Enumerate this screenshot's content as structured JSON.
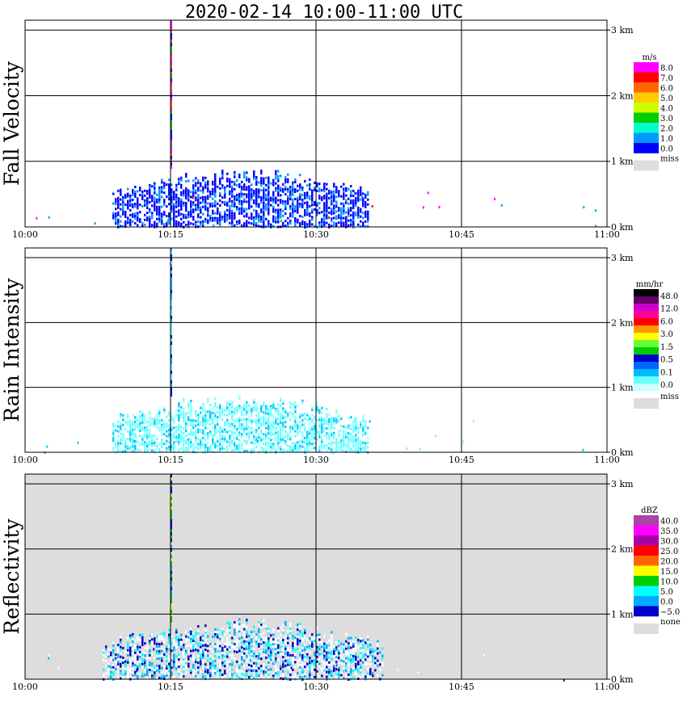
{
  "title": "2020-02-14   10:00-11:00 UTC",
  "chart_data": [
    {
      "type": "heatmap",
      "title": "Fall Velocity",
      "x_ticks": [
        "10:00",
        "10:15",
        "10:30",
        "10:45",
        "11:00"
      ],
      "y_ticks": [
        "0 km",
        "1 km",
        "2 km",
        "3 km"
      ],
      "ylim": [
        0,
        3.15
      ],
      "background": "#ffffff",
      "colorbar": {
        "unit": "m/s",
        "labels": [
          "8.0",
          "7.0",
          "6.0",
          "5.0",
          "4.0",
          "3.0",
          "2.0",
          "1.0",
          "0.0"
        ],
        "colors": [
          "#ff00ff",
          "#ff0000",
          "#ff6600",
          "#ffcc00",
          "#ccff00",
          "#00cc00",
          "#00ffcc",
          "#0099ff",
          "#0000ff"
        ],
        "miss_label": "miss",
        "miss_color": "#dddddd"
      },
      "features": {
        "rain_band": {
          "t_start": 9,
          "t_end": 35.5,
          "top_km": 0.92,
          "colors": [
            "#0000ff",
            "#0000ff",
            "#0000ff",
            "#0099ff"
          ]
        },
        "column_minute": 15,
        "column_colors": [
          "#ff00ff",
          "#ff6600",
          "#00cc00",
          "#0000ff"
        ],
        "scatter_colors": [
          "#ff00ff",
          "#ff0000",
          "#00cc00",
          "#0099ff"
        ]
      }
    },
    {
      "type": "heatmap",
      "title": "Rain Intensity",
      "x_ticks": [
        "10:00",
        "10:15",
        "10:30",
        "10:45",
        "11:00"
      ],
      "y_ticks": [
        "0 km",
        "1 km",
        "2 km",
        "3 km"
      ],
      "ylim": [
        0,
        3.15
      ],
      "background": "#ffffff",
      "colorbar": {
        "unit": "mm/hr",
        "labels": [
          "48.0",
          "12.0",
          "6.0",
          "3.0",
          "1.5",
          "0.5",
          "0.1",
          "0.0"
        ],
        "colors": [
          "#000000",
          "#660066",
          "#cc00cc",
          "#ff0099",
          "#ff0000",
          "#ff9900",
          "#ffff00",
          "#66ff33",
          "#00cc00",
          "#0000cc",
          "#0066ff",
          "#00bbff",
          "#66ffff",
          "#ccffff"
        ],
        "miss_label": "miss",
        "miss_color": "#dddddd"
      },
      "features": {
        "rain_band": {
          "t_start": 9,
          "t_end": 35.5,
          "top_km": 0.92,
          "colors": [
            "#99ffff",
            "#66ffff",
            "#66ffff",
            "#00ccff"
          ]
        },
        "column_minute": 15,
        "column_colors": [
          "#66ffff",
          "#0000cc",
          "#00bbff"
        ],
        "scatter_colors": [
          "#66ffff",
          "#00bbff"
        ]
      }
    },
    {
      "type": "heatmap",
      "title": "Reflectivity",
      "x_ticks": [
        "10:00",
        "10:15",
        "10:30",
        "10:45",
        "11:00"
      ],
      "y_ticks": [
        "0 km",
        "1 km",
        "2 km",
        "3 km"
      ],
      "ylim": [
        0,
        3.15
      ],
      "background": "#dddddd",
      "colorbar": {
        "unit": "dBZ",
        "labels": [
          "40.0",
          "35.0",
          "30.0",
          "25.0",
          "20.0",
          "15.0",
          "10.0",
          "5.0",
          "0.0",
          "−5.0"
        ],
        "colors": [
          "#aa44aa",
          "#ff00ff",
          "#aa00aa",
          "#ff0000",
          "#ff6600",
          "#ffff00",
          "#00cc00",
          "#00ffff",
          "#00aaff",
          "#0000cc"
        ],
        "miss_label": "none",
        "miss_color": "#dddddd"
      },
      "features": {
        "rain_band": {
          "t_start": 8,
          "t_end": 37,
          "top_km": 0.95,
          "colors": [
            "#ffffff",
            "#ffffff",
            "#0000cc",
            "#00aaff",
            "#00ffff"
          ]
        },
        "column_minute": 15,
        "column_colors": [
          "#00cc00",
          "#ffff00",
          "#0000cc",
          "#00aaff"
        ],
        "scatter_colors": [
          "#ffffff",
          "#0000cc",
          "#00aaff"
        ]
      }
    }
  ]
}
